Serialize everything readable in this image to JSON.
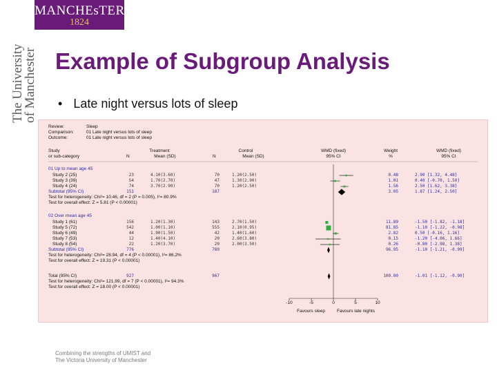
{
  "header": {
    "logo_line1": "MANCHEsTER",
    "logo_line2": "1824",
    "vertical_line1": "The University",
    "vertical_line2": "of Manchester"
  },
  "slide": {
    "title": "Example of Subgroup Analysis",
    "bullet": "Late night versus lots of sleep"
  },
  "review": {
    "review_label": "Review:",
    "review_value": "Sleep",
    "comparison_label": "Comparison:",
    "comparison_value": "01 Late night versus lots of sleep",
    "outcome_label": "Outcome:",
    "outcome_value": "01 Late night versus lots of sleep"
  },
  "headers": {
    "study_1": "Study",
    "study_2": "or sub-category",
    "treatment": "Treatment",
    "control": "Control",
    "n": "N",
    "mean_sd": "Mean (SD)",
    "wmd_1": "WMD (fixed)",
    "wmd_2": "95% CI",
    "weight_1": "Weight",
    "weight_2": "%",
    "wmd_ci_1": "WMD (fixed)",
    "wmd_ci_2": "95% CI"
  },
  "groups": [
    {
      "label": "01 Up to mean age 45",
      "studies": [
        {
          "name": "Study 2 (25)",
          "tn": "23",
          "tmean": "4.10(3.60)",
          "cn": "70",
          "cmean": "1.20(2.50)",
          "weight": "0.48",
          "ci_text": "2.90 [1.32, 4.48]",
          "est": 2.9,
          "lo": 1.32,
          "hi": 4.48,
          "w": 0.48
        },
        {
          "name": "Study 3 (39)",
          "tn": "54",
          "tmean": "1.70(2.70)",
          "cn": "47",
          "cmean": "1.30(2.90)",
          "weight": "1.01",
          "ci_text": "0.40 [-0.70, 1.50]",
          "est": 0.4,
          "lo": -0.7,
          "hi": 1.5,
          "w": 1.01
        },
        {
          "name": "Study 4 (24)",
          "tn": "74",
          "tmean": "3.70(2.90)",
          "cn": "70",
          "cmean": "1.20(2.50)",
          "weight": "1.56",
          "ci_text": "2.50 [1.62, 3.38]",
          "est": 2.5,
          "lo": 1.62,
          "hi": 3.38,
          "w": 1.56
        }
      ],
      "subtotal": {
        "label": "Subtotal (95% CI)",
        "tn": "151",
        "cn": "187",
        "weight": "3.05",
        "ci_text": "1.87 [1.24, 2.50]",
        "est": 1.87,
        "lo": 1.24,
        "hi": 2.5
      },
      "het": "Test for heterogeneity: Chi²= 10.46, df = 2 (P = 0.005), I²= 80.9%",
      "overall": "Test for overall effect: Z = 5.81 (P < 0.00001)"
    },
    {
      "label": "02 Over mean age 45",
      "studies": [
        {
          "name": "Study 1 (61)",
          "tn": "156",
          "tmean": "1.20(1.30)",
          "cn": "143",
          "cmean": "2.70(1.50)",
          "weight": "11.89",
          "ci_text": "-1.50 [-1.82, -1.18]",
          "est": -1.5,
          "lo": -1.82,
          "hi": -1.18,
          "w": 11.89
        },
        {
          "name": "Study 5 (72)",
          "tn": "542",
          "tmean": "1.00(1.10)",
          "cn": "555",
          "cmean": "2.10(0.95)",
          "weight": "81.85",
          "ci_text": "-1.10 [-1.22, -0.98]",
          "est": -1.1,
          "lo": -1.22,
          "hi": -0.98,
          "w": 81.85
        },
        {
          "name": "Study 6 (49)",
          "tn": "44",
          "tmean": "1.90(1.50)",
          "cn": "42",
          "cmean": "1.40(1.60)",
          "weight": "2.82",
          "ci_text": "0.50 [-0.16, 1.16]",
          "est": 0.5,
          "lo": -0.16,
          "hi": 1.16,
          "w": 2.82
        },
        {
          "name": "Study 7 (53)",
          "tn": "12",
          "tmean": "1.40(4.10)",
          "cn": "20",
          "cmean": "2.60(3.80)",
          "weight": "0.15",
          "ci_text": "-1.20 [-4.06, 1.66]",
          "est": -1.2,
          "lo": -4.06,
          "hi": 1.66,
          "w": 0.15
        },
        {
          "name": "Study 8 (54)",
          "tn": "22",
          "tmean": "1.20(3.70)",
          "cn": "20",
          "cmean": "2.00(3.50)",
          "weight": "0.26",
          "ci_text": "-0.80 [-2.98, 1.38]",
          "est": -0.8,
          "lo": -2.98,
          "hi": 1.38,
          "w": 0.26
        }
      ],
      "subtotal": {
        "label": "Subtotal (95% CI)",
        "tn": "776",
        "cn": "780",
        "weight": "96.95",
        "ci_text": "-1.10 [-1.21, -0.99]",
        "est": -1.1,
        "lo": -1.21,
        "hi": -0.99
      },
      "het": "Test for heterogeneity: Chi²= 28.94, df = 4 (P < 0.00001), I²= 86.2%",
      "overall": "Test for overall effect: Z = 19.31 (P < 0.00001)"
    }
  ],
  "total": {
    "label": "Total (95% CI)",
    "tn": "927",
    "cn": "967",
    "weight": "100.00",
    "ci_text": "-1.01 [-1.12, -0.90]",
    "est": -1.01,
    "lo": -1.12,
    "hi": -0.9,
    "het": "Test for heterogeneity: Chi²= 121.99, df = 7 (P < 0.00001), I²= 94.3%",
    "overall": "Test for overall effect: Z = 18.00 (P < 0.00001)"
  },
  "axis": {
    "ticks": [
      -10,
      -5,
      0,
      5,
      10
    ],
    "tick_labels": [
      "-10",
      "-5",
      "0",
      "5",
      "10"
    ],
    "favours_left": "Favours sleep",
    "favours_right": "Favours late nights"
  },
  "footer": {
    "line1": "Combining the strengths of UMIST and",
    "line2": "The Victoria University of Manchester"
  },
  "colors": {
    "brand_purple": "#6a1b7a",
    "gold": "#e0c15a",
    "panel_bg": "#fbe3e3",
    "study_square": "#2fae3a",
    "blue_text": "#2a2aa0"
  }
}
